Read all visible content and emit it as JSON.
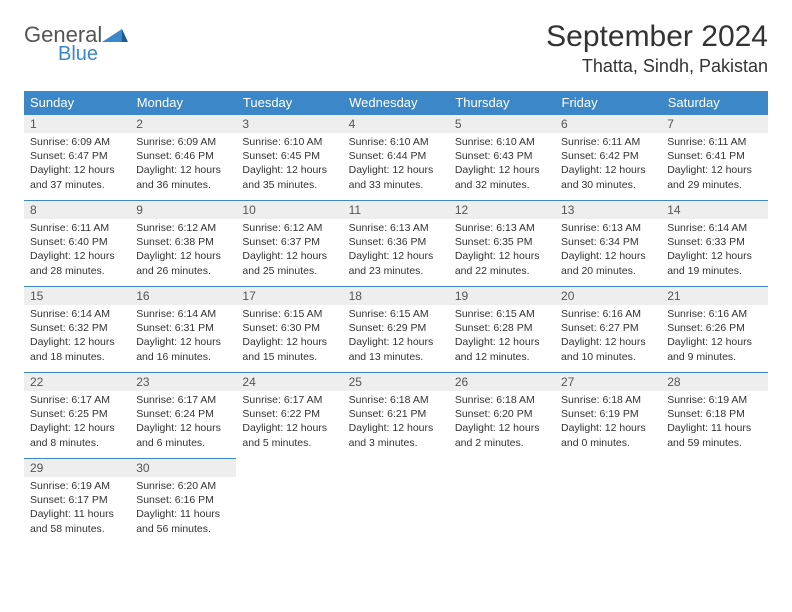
{
  "logo": {
    "general": "General",
    "blue": "Blue"
  },
  "title": "September 2024",
  "location": "Thatta, Sindh, Pakistan",
  "colors": {
    "header_bg": "#3b87c8",
    "header_fg": "#ffffff",
    "daynum_bg": "#eeeeee",
    "text": "#333333",
    "border": "#3b87c8",
    "logo_gray": "#555555",
    "logo_blue": "#3b87c8",
    "page_bg": "#ffffff"
  },
  "weekdays": [
    "Sunday",
    "Monday",
    "Tuesday",
    "Wednesday",
    "Thursday",
    "Friday",
    "Saturday"
  ],
  "weeks": [
    [
      {
        "n": "1",
        "sr": "6:09 AM",
        "ss": "6:47 PM",
        "dl": "12 hours and 37 minutes."
      },
      {
        "n": "2",
        "sr": "6:09 AM",
        "ss": "6:46 PM",
        "dl": "12 hours and 36 minutes."
      },
      {
        "n": "3",
        "sr": "6:10 AM",
        "ss": "6:45 PM",
        "dl": "12 hours and 35 minutes."
      },
      {
        "n": "4",
        "sr": "6:10 AM",
        "ss": "6:44 PM",
        "dl": "12 hours and 33 minutes."
      },
      {
        "n": "5",
        "sr": "6:10 AM",
        "ss": "6:43 PM",
        "dl": "12 hours and 32 minutes."
      },
      {
        "n": "6",
        "sr": "6:11 AM",
        "ss": "6:42 PM",
        "dl": "12 hours and 30 minutes."
      },
      {
        "n": "7",
        "sr": "6:11 AM",
        "ss": "6:41 PM",
        "dl": "12 hours and 29 minutes."
      }
    ],
    [
      {
        "n": "8",
        "sr": "6:11 AM",
        "ss": "6:40 PM",
        "dl": "12 hours and 28 minutes."
      },
      {
        "n": "9",
        "sr": "6:12 AM",
        "ss": "6:38 PM",
        "dl": "12 hours and 26 minutes."
      },
      {
        "n": "10",
        "sr": "6:12 AM",
        "ss": "6:37 PM",
        "dl": "12 hours and 25 minutes."
      },
      {
        "n": "11",
        "sr": "6:13 AM",
        "ss": "6:36 PM",
        "dl": "12 hours and 23 minutes."
      },
      {
        "n": "12",
        "sr": "6:13 AM",
        "ss": "6:35 PM",
        "dl": "12 hours and 22 minutes."
      },
      {
        "n": "13",
        "sr": "6:13 AM",
        "ss": "6:34 PM",
        "dl": "12 hours and 20 minutes."
      },
      {
        "n": "14",
        "sr": "6:14 AM",
        "ss": "6:33 PM",
        "dl": "12 hours and 19 minutes."
      }
    ],
    [
      {
        "n": "15",
        "sr": "6:14 AM",
        "ss": "6:32 PM",
        "dl": "12 hours and 18 minutes."
      },
      {
        "n": "16",
        "sr": "6:14 AM",
        "ss": "6:31 PM",
        "dl": "12 hours and 16 minutes."
      },
      {
        "n": "17",
        "sr": "6:15 AM",
        "ss": "6:30 PM",
        "dl": "12 hours and 15 minutes."
      },
      {
        "n": "18",
        "sr": "6:15 AM",
        "ss": "6:29 PM",
        "dl": "12 hours and 13 minutes."
      },
      {
        "n": "19",
        "sr": "6:15 AM",
        "ss": "6:28 PM",
        "dl": "12 hours and 12 minutes."
      },
      {
        "n": "20",
        "sr": "6:16 AM",
        "ss": "6:27 PM",
        "dl": "12 hours and 10 minutes."
      },
      {
        "n": "21",
        "sr": "6:16 AM",
        "ss": "6:26 PM",
        "dl": "12 hours and 9 minutes."
      }
    ],
    [
      {
        "n": "22",
        "sr": "6:17 AM",
        "ss": "6:25 PM",
        "dl": "12 hours and 8 minutes."
      },
      {
        "n": "23",
        "sr": "6:17 AM",
        "ss": "6:24 PM",
        "dl": "12 hours and 6 minutes."
      },
      {
        "n": "24",
        "sr": "6:17 AM",
        "ss": "6:22 PM",
        "dl": "12 hours and 5 minutes."
      },
      {
        "n": "25",
        "sr": "6:18 AM",
        "ss": "6:21 PM",
        "dl": "12 hours and 3 minutes."
      },
      {
        "n": "26",
        "sr": "6:18 AM",
        "ss": "6:20 PM",
        "dl": "12 hours and 2 minutes."
      },
      {
        "n": "27",
        "sr": "6:18 AM",
        "ss": "6:19 PM",
        "dl": "12 hours and 0 minutes."
      },
      {
        "n": "28",
        "sr": "6:19 AM",
        "ss": "6:18 PM",
        "dl": "11 hours and 59 minutes."
      }
    ],
    [
      {
        "n": "29",
        "sr": "6:19 AM",
        "ss": "6:17 PM",
        "dl": "11 hours and 58 minutes."
      },
      {
        "n": "30",
        "sr": "6:20 AM",
        "ss": "6:16 PM",
        "dl": "11 hours and 56 minutes."
      },
      null,
      null,
      null,
      null,
      null
    ]
  ],
  "labels": {
    "sunrise": "Sunrise:",
    "sunset": "Sunset:",
    "daylight": "Daylight:"
  }
}
